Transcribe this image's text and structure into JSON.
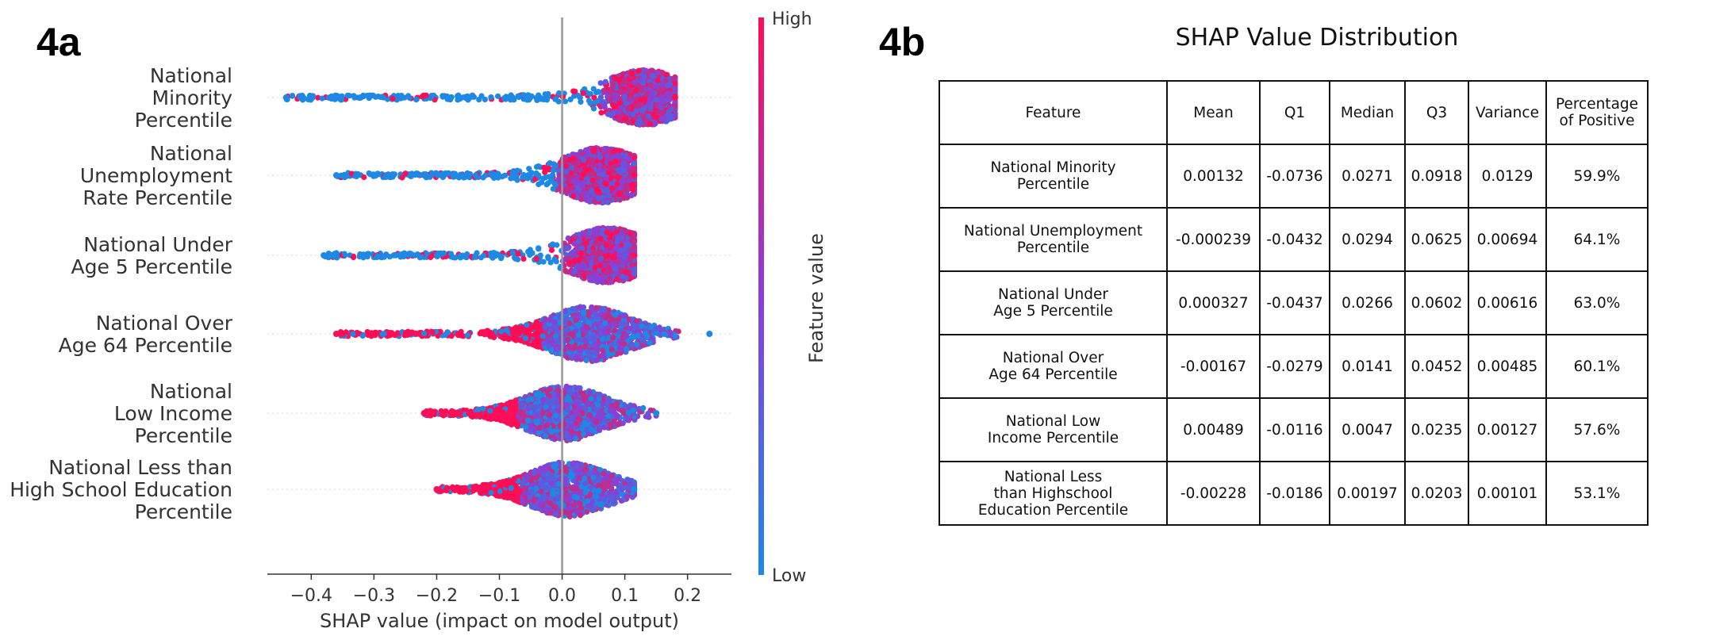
{
  "panel_a_label": "4a",
  "panel_b_label": "4b",
  "colors": {
    "low": "#1e88e5",
    "high": "#ff0d57",
    "zero_line": "#999999"
  },
  "chart_data": {
    "type": "scatter",
    "subtype": "beeswarm",
    "xlabel": "SHAP value (impact on model output)",
    "xlim": [
      -0.47,
      0.27
    ],
    "xticks": [
      -0.4,
      -0.3,
      -0.2,
      -0.1,
      0.0,
      0.1,
      0.2
    ],
    "xtick_labels": [
      "−0.4",
      "−0.3",
      "−0.2",
      "−0.1",
      "0.0",
      "0.1",
      "0.2"
    ],
    "colorbar": {
      "label": "Feature value",
      "high_label": "High",
      "low_label": "Low"
    },
    "features": [
      {
        "name_lines": [
          "National",
          "Minority",
          "Percentile"
        ],
        "min": -0.44,
        "max": 0.18,
        "peak": 0.13,
        "neg_color": "low"
      },
      {
        "name_lines": [
          "National",
          "Unemployment",
          "Rate Percentile"
        ],
        "min": -0.36,
        "max": 0.115,
        "peak": 0.06,
        "neg_color": "low"
      },
      {
        "name_lines": [
          "National Under",
          "Age 5 Percentile"
        ],
        "min": -0.38,
        "max": 0.115,
        "peak": 0.07,
        "neg_color": "low"
      },
      {
        "name_lines": [
          "National Over",
          "Age 64 Percentile"
        ],
        "min": -0.36,
        "max": 0.235,
        "peak": 0.04,
        "neg_color": "high"
      },
      {
        "name_lines": [
          "National",
          "Low Income",
          "Percentile"
        ],
        "min": -0.22,
        "max": 0.15,
        "peak": 0.0,
        "neg_color": "high"
      },
      {
        "name_lines": [
          "National Less than",
          "High School Education",
          "Percentile"
        ],
        "min": -0.2,
        "max": 0.115,
        "peak": 0.005,
        "neg_color": "high"
      }
    ]
  },
  "table": {
    "title": "SHAP Value Distribution",
    "headers": [
      [
        "Feature"
      ],
      [
        "Mean"
      ],
      [
        "Q1"
      ],
      [
        "Median"
      ],
      [
        "Q3"
      ],
      [
        "Variance"
      ],
      [
        "Percentage",
        "of Positive"
      ]
    ],
    "rows": [
      {
        "feature": [
          "National Minority",
          "Percentile"
        ],
        "cells": [
          "0.00132",
          "-0.0736",
          "0.0271",
          "0.0918",
          "0.0129",
          "59.9%"
        ]
      },
      {
        "feature": [
          "National Unemployment",
          "Percentile"
        ],
        "cells": [
          "-0.000239",
          "-0.0432",
          "0.0294",
          "0.0625",
          "0.00694",
          "64.1%"
        ]
      },
      {
        "feature": [
          "National Under",
          "Age 5 Percentile"
        ],
        "cells": [
          "0.000327",
          "-0.0437",
          "0.0266",
          "0.0602",
          "0.00616",
          "63.0%"
        ]
      },
      {
        "feature": [
          "National Over",
          "Age 64 Percentile"
        ],
        "cells": [
          "-0.00167",
          "-0.0279",
          "0.0141",
          "0.0452",
          "0.00485",
          "60.1%"
        ]
      },
      {
        "feature": [
          "National Low",
          "Income Percentile"
        ],
        "cells": [
          "0.00489",
          "-0.0116",
          "0.0047",
          "0.0235",
          "0.00127",
          "57.6%"
        ]
      },
      {
        "feature": [
          "National Less",
          "than Highschool",
          "Education Percentile"
        ],
        "cells": [
          "-0.00228",
          "-0.0186",
          "0.00197",
          "0.0203",
          "0.00101",
          "53.1%"
        ]
      }
    ]
  }
}
